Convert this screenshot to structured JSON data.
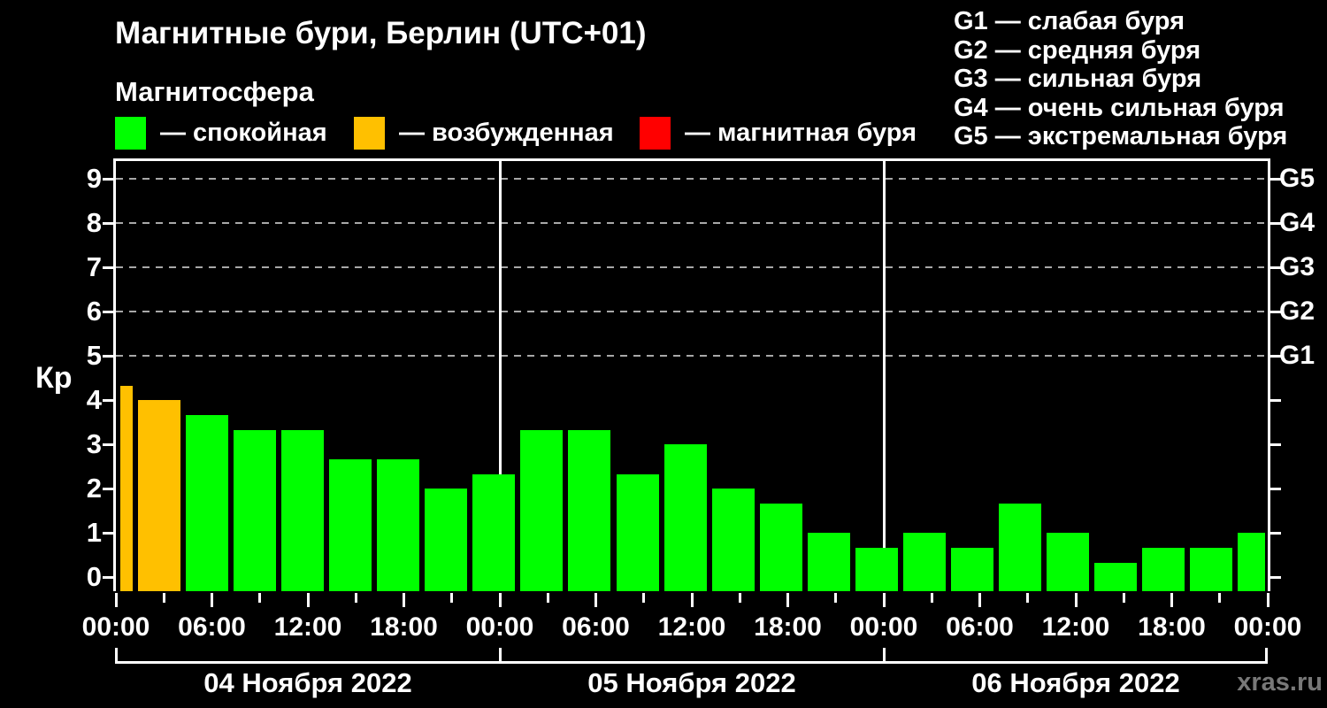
{
  "title": "Магнитные бури, Берлин (UTC+01)",
  "subtitle": "Магнитосфера",
  "watermark": "xras.ru",
  "colors": {
    "background": "#000000",
    "text": "#ffffff",
    "frame": "#ffffff",
    "grid": "#a8a8a8",
    "quiet": "#00ff00",
    "excited": "#ffc000",
    "storm": "#ff0000",
    "watermark": "#787878"
  },
  "legend": {
    "items": [
      {
        "name": "quiet",
        "label": "— спокойная",
        "color": "#00ff00"
      },
      {
        "name": "excited",
        "label": "— возбужденная",
        "color": "#ffc000"
      },
      {
        "name": "storm",
        "label": "— магнитная буря",
        "color": "#ff0000"
      }
    ]
  },
  "storm_scale": {
    "items": [
      {
        "code": "G1",
        "label": "слабая буря",
        "kp": 5
      },
      {
        "code": "G2",
        "label": "средняя буря",
        "kp": 6
      },
      {
        "code": "G3",
        "label": "сильная буря",
        "kp": 7
      },
      {
        "code": "G4",
        "label": "очень сильная буря",
        "kp": 8
      },
      {
        "code": "G5",
        "label": "экстремальная буря",
        "kp": 9
      }
    ]
  },
  "chart_data": {
    "type": "bar",
    "title": "Магнитные бури, Берлин (UTC+01)",
    "ylabel": "Кр",
    "ylim": [
      -0.32,
      9.4
    ],
    "yticks": [
      0,
      1,
      2,
      3,
      4,
      5,
      6,
      7,
      8,
      9
    ],
    "grid_levels": [
      5,
      6,
      7,
      8,
      9
    ],
    "total_hours": 72,
    "x_minor_step_hours": 3,
    "x_major_step_hours": 6,
    "x_tick_labels": [
      "00:00",
      "06:00",
      "12:00",
      "18:00",
      "00:00",
      "06:00",
      "12:00",
      "18:00",
      "00:00",
      "06:00",
      "12:00",
      "18:00",
      "00:00"
    ],
    "days": [
      {
        "label": "04 Ноября 2022"
      },
      {
        "label": "05 Ноября 2022"
      },
      {
        "label": "06 Ноября 2022"
      }
    ],
    "color_rules": {
      "quiet_below_kp": 4,
      "excited_below_kp": 5,
      "storm_from_kp": 5
    },
    "bars": [
      {
        "kp": 4.33,
        "partial": "start"
      },
      {
        "kp": 4.0
      },
      {
        "kp": 3.67
      },
      {
        "kp": 3.33
      },
      {
        "kp": 3.33
      },
      {
        "kp": 2.67
      },
      {
        "kp": 2.67
      },
      {
        "kp": 2.0
      },
      {
        "kp": 2.33
      },
      {
        "kp": 3.33
      },
      {
        "kp": 3.33
      },
      {
        "kp": 2.33
      },
      {
        "kp": 3.0
      },
      {
        "kp": 2.0
      },
      {
        "kp": 1.67
      },
      {
        "kp": 1.0
      },
      {
        "kp": 0.67
      },
      {
        "kp": 1.0
      },
      {
        "kp": 0.67
      },
      {
        "kp": 1.67
      },
      {
        "kp": 1.0
      },
      {
        "kp": 0.33
      },
      {
        "kp": 0.67
      },
      {
        "kp": 0.67
      },
      {
        "kp": 1.0,
        "partial": "end"
      }
    ]
  }
}
